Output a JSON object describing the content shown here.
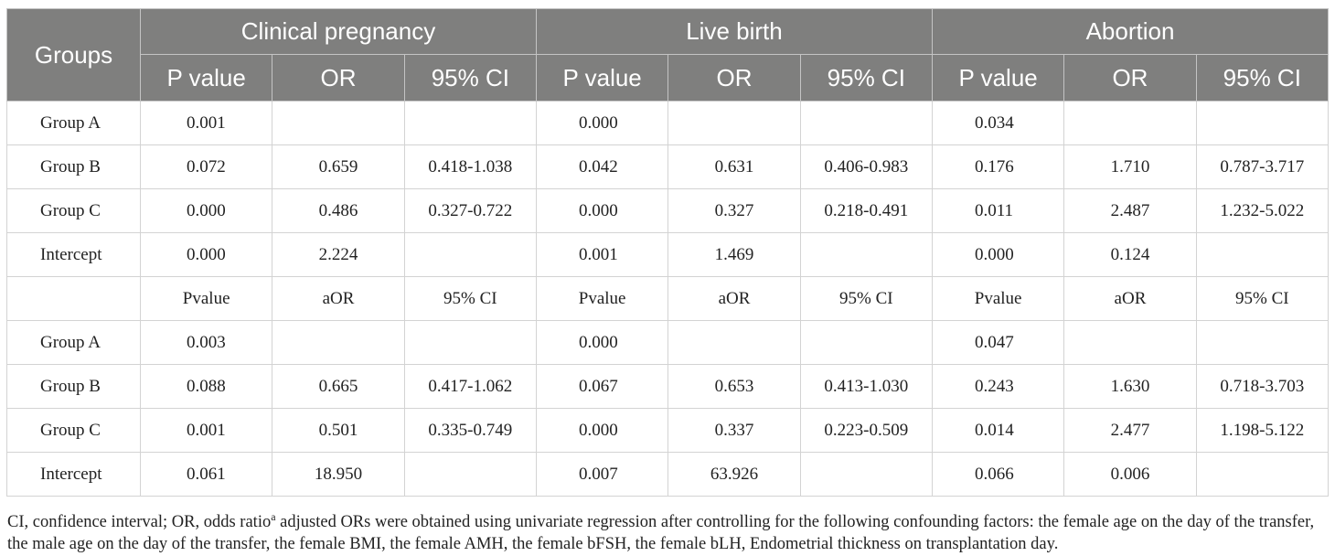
{
  "table": {
    "header": {
      "groups_label": "Groups",
      "sections": [
        "Clinical pregnancy",
        "Live birth",
        "Abortion"
      ],
      "subheaders": [
        "P value",
        "OR",
        "95% CI"
      ]
    },
    "rows_unadjusted": [
      {
        "group": "Group A",
        "cells": [
          "0.001",
          "",
          "",
          "0.000",
          "",
          "",
          "0.034",
          "",
          ""
        ]
      },
      {
        "group": "Group B",
        "cells": [
          "0.072",
          "0.659",
          "0.418-1.038",
          "0.042",
          "0.631",
          "0.406-0.983",
          "0.176",
          "1.710",
          "0.787-3.717"
        ]
      },
      {
        "group": "Group C",
        "cells": [
          "0.000",
          "0.486",
          "0.327-0.722",
          "0.000",
          "0.327",
          "0.218-0.491",
          "0.011",
          "2.487",
          "1.232-5.022"
        ]
      },
      {
        "group": "Intercept",
        "cells": [
          "0.000",
          "2.224",
          "",
          "0.001",
          "1.469",
          "",
          "0.000",
          "0.124",
          ""
        ]
      }
    ],
    "adjusted_header": [
      "Pvalue",
      "aOR",
      "95% CI",
      "Pvalue",
      "aOR",
      "95% CI",
      "Pvalue",
      "aOR",
      "95% CI"
    ],
    "rows_adjusted": [
      {
        "group": "Group A",
        "cells": [
          "0.003",
          "",
          "",
          "0.000",
          "",
          "",
          "0.047",
          "",
          ""
        ]
      },
      {
        "group": "Group B",
        "cells": [
          "0.088",
          "0.665",
          "0.417-1.062",
          "0.067",
          "0.653",
          "0.413-1.030",
          "0.243",
          "1.630",
          "0.718-3.703"
        ]
      },
      {
        "group": "Group C",
        "cells": [
          "0.001",
          "0.501",
          "0.335-0.749",
          "0.000",
          "0.337",
          "0.223-0.509",
          "0.014",
          "2.477",
          "1.198-5.122"
        ]
      },
      {
        "group": "Intercept",
        "cells": [
          "0.061",
          "18.950",
          "",
          "0.007",
          "63.926",
          "",
          "0.066",
          "0.006",
          ""
        ]
      }
    ]
  },
  "footnote": {
    "part1": "CI, confidence interval; OR, odds ratio",
    "superscript": "a",
    "part2": " adjusted ORs were obtained using univariate regression after controlling for the following confounding factors: the female age on the day of the transfer, the male age on the day of the transfer, the female BMI, the female AMH, the female bFSH, the female bLH, Endometrial thickness on transplantation day."
  }
}
